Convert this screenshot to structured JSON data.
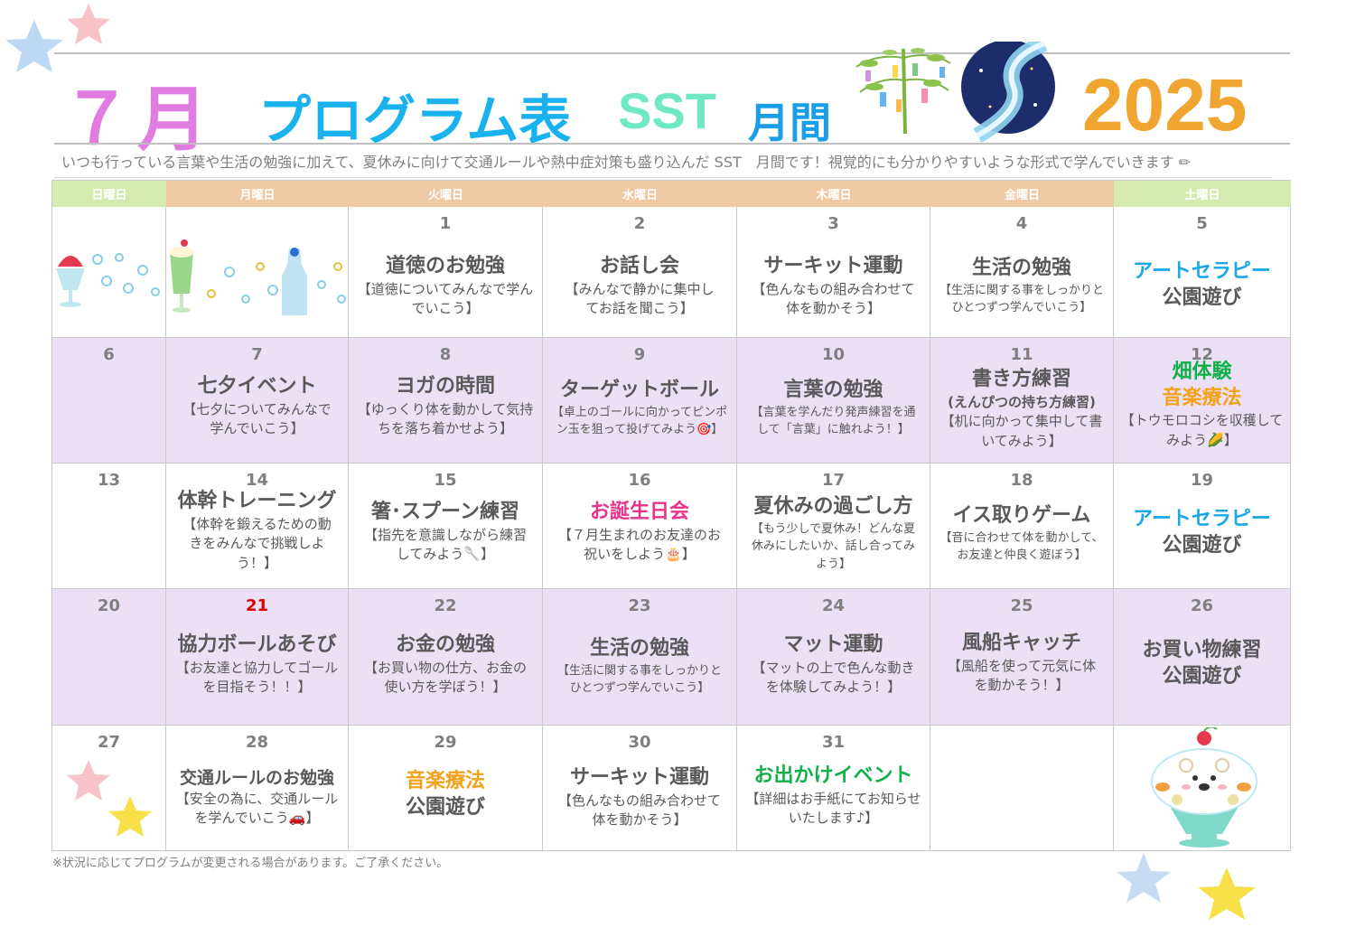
{
  "header": {
    "month": "７月",
    "program": "プログラム表",
    "sst": "SST",
    "kan": "月間",
    "year": "2025",
    "description": "いつも行っている言葉や生活の勉強に加えて、夏休みに向けて交通ルールや熱中症対策も盛り込んだ SST　月間です！視覚的にも分かりやすいような形式で学んでいきます"
  },
  "weekdays": [
    "日曜日",
    "月曜日",
    "火曜日",
    "水曜日",
    "木曜日",
    "金曜日",
    "土曜日"
  ],
  "colors": {
    "sun_header": "#d5eab0",
    "weekday_header": "#efc8a4",
    "sat_header": "#d5eab0",
    "purple_row": "#ebe0f5"
  },
  "week1": {
    "d1": "1",
    "d1_title": "道徳のお勉強",
    "d1_sub": "【道徳についてみんなで学んでいこう】",
    "d2": "2",
    "d2_title": "お話し会",
    "d2_sub": "【みんなで静かに集中してお話を聞こう】",
    "d3": "3",
    "d3_title": "サーキット運動",
    "d3_sub": "【色んなもの組み合わせて体を動かそう】",
    "d4": "4",
    "d4_title": "生活の勉強",
    "d4_sub": "【生活に関する事をしっかりとひとつずつ学んでいこう】",
    "d5": "5",
    "d5_title": "アートセラピー",
    "d5_sub": "公園遊び"
  },
  "week2": {
    "d6": "6",
    "d7": "7",
    "d7_title": "七夕イベント",
    "d7_sub": "【七夕についてみんなで学んでいこう】",
    "d8": "8",
    "d8_title": "ヨガの時間",
    "d8_sub": "【ゆっくり体を動かして気持ちを落ち着かせよう】",
    "d9": "9",
    "d9_title": "ターゲットボール",
    "d9_sub": "【卓上のゴールに向かってピンポン玉を狙って投げてみよう🎯】",
    "d10": "10",
    "d10_title": "言葉の勉強",
    "d10_sub": "【言葉を学んだり発声練習を通して「言葉」に触れよう！】",
    "d11": "11",
    "d11_title": "書き方練習",
    "d11_paren": "(えんぴつの持ち方練習)",
    "d11_sub": "【机に向かって集中して書いてみよう】",
    "d12": "12",
    "d12_title1": "畑体験",
    "d12_title2": "音楽療法",
    "d12_sub": "【トウモロコシを収穫してみよう🌽】"
  },
  "week3": {
    "d13": "13",
    "d14": "14",
    "d14_title": "体幹トレーニング",
    "d14_sub": "【体幹を鍛えるための動きをみんなで挑戦しよう！】",
    "d15": "15",
    "d15_title": "箸･スプーン練習",
    "d15_sub": "【指先を意識しながら練習してみよう🥄】",
    "d16": "16",
    "d16_title": "お誕生日会",
    "d16_sub": "【７月生まれのお友達のお祝いをしよう🎂】",
    "d17": "17",
    "d17_title": "夏休みの過ごし方",
    "d17_sub": "【もう少しで夏休み！どんな夏休みにしたいか、話し合ってみよう】",
    "d18": "18",
    "d18_title": "イス取りゲーム",
    "d18_sub": "【音に合わせて体を動かして、お友達と仲良く遊ぼう】",
    "d19": "19",
    "d19_title": "アートセラピー",
    "d19_sub": "公園遊び"
  },
  "week4": {
    "d20": "20",
    "d21": "21",
    "d21_title": "協力ボールあそび",
    "d21_sub": "【お友達と協力してゴールを目指そう！！】",
    "d22": "22",
    "d22_title": "お金の勉強",
    "d22_sub": "【お買い物の仕方、お金の使い方を学ぼう！】",
    "d23": "23",
    "d23_title": "生活の勉強",
    "d23_sub": "【生活に関する事をしっかりとひとつずつ学んでいこう】",
    "d24": "24",
    "d24_title": "マット運動",
    "d24_sub": "【マットの上で色んな動きを体験してみよう！】",
    "d25": "25",
    "d25_title": "風船キャッチ",
    "d25_sub": "【風船を使って元気に体を動かそう！】",
    "d26": "26",
    "d26_title1": "お買い物練習",
    "d26_title2": "公園遊び"
  },
  "week5": {
    "d27": "27",
    "d28": "28",
    "d28_title": "交通ルールのお勉強",
    "d28_sub": "【安全の為に、交通ルールを学んでいこう🚗】",
    "d29": "29",
    "d29_title": "音楽療法",
    "d29_sub": "公園遊び",
    "d30": "30",
    "d30_title": "サーキット運動",
    "d30_sub": "【色んなもの組み合わせて体を動かそう】",
    "d31": "31",
    "d31_title": "お出かけイベント",
    "d31_sub": "【詳細はお手紙にてお知らせいたします♪】"
  },
  "note": "※状況に応じてプログラムが変更される場合があります。ご了承ください。"
}
